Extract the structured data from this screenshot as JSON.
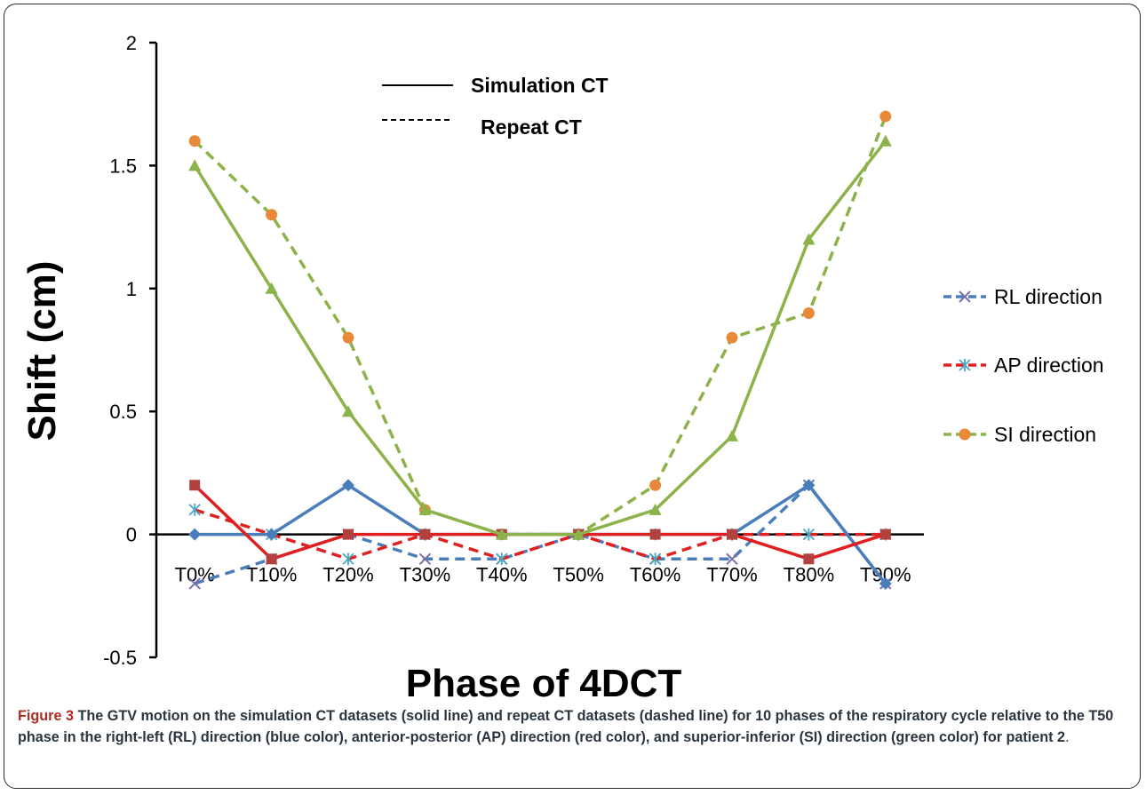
{
  "chart_data": {
    "type": "line",
    "categories": [
      "T0%",
      "T10%",
      "T20%",
      "T30%",
      "T40%",
      "T50%",
      "T60%",
      "T70%",
      "T80%",
      "T90%"
    ],
    "xlabel": "Phase of 4DCT",
    "ylabel": "Shift (cm)",
    "ylim": [
      -0.5,
      2
    ],
    "yticks": [
      "2",
      "1.5",
      "1",
      "0.5",
      "0",
      "-0.5"
    ],
    "ytick_values": [
      2,
      1.5,
      1,
      0.5,
      0,
      -0.5
    ],
    "grid": false,
    "legend_position": "right",
    "line_style_key": {
      "solid_label": "Simulation CT",
      "dashed_label": "Repeat CT"
    },
    "series": [
      {
        "name": "RL direction",
        "dataset": "simulation",
        "style": "solid",
        "color": "#4a7ebb",
        "marker": "diamond",
        "values": [
          0,
          0,
          0.2,
          0,
          0,
          0,
          0,
          0,
          0.2,
          -0.2
        ]
      },
      {
        "name": "AP direction",
        "dataset": "simulation",
        "style": "solid",
        "color": "#e02020",
        "marker": "square",
        "marker_color": "#b0413e",
        "values": [
          0.2,
          -0.1,
          0,
          0,
          0,
          0,
          0,
          0,
          -0.1,
          0
        ]
      },
      {
        "name": "SI direction",
        "dataset": "simulation",
        "style": "solid",
        "color": "#8cb24a",
        "marker": "triangle",
        "values": [
          1.5,
          1.0,
          0.5,
          0.1,
          0,
          0,
          0.1,
          0.4,
          1.2,
          1.6
        ]
      },
      {
        "name": "RL direction",
        "dataset": "repeat",
        "style": "dashed",
        "color": "#4a7ebb",
        "marker": "x",
        "marker_color": "#7b6fa8",
        "values": [
          -0.2,
          -0.1,
          0,
          -0.1,
          -0.1,
          0,
          -0.1,
          -0.1,
          0.2,
          -0.2
        ]
      },
      {
        "name": "AP direction",
        "dataset": "repeat",
        "style": "dashed",
        "color": "#e02020",
        "marker": "asterisk",
        "marker_color": "#4aa8c4",
        "values": [
          0.1,
          0,
          -0.1,
          0,
          -0.1,
          0,
          -0.1,
          0,
          0,
          0
        ]
      },
      {
        "name": "SI direction",
        "dataset": "repeat",
        "style": "dashed",
        "color": "#8cb24a",
        "marker": "circle",
        "marker_color": "#e8893a",
        "values": [
          1.6,
          1.3,
          0.8,
          0.1,
          0,
          0,
          0.2,
          0.8,
          0.9,
          1.7
        ]
      }
    ],
    "legend": [
      {
        "label": "RL direction",
        "color": "#4a7ebb",
        "marker": "x",
        "marker_color": "#7b6fa8"
      },
      {
        "label": "AP direction",
        "color": "#e02020",
        "marker": "asterisk",
        "marker_color": "#4aa8c4"
      },
      {
        "label": "SI direction",
        "color": "#8cb24a",
        "marker": "circle",
        "marker_color": "#e8893a"
      }
    ]
  },
  "caption": {
    "lead": "Figure 3",
    "text": " The GTV motion on the simulation CT datasets (solid line) and repeat CT datasets (dashed line) for 10 phases of the respiratory cycle relative to the T50 phase in the right-left (RL) direction (blue color), anterior-posterior (AP) direction (red color), and superior-inferior (SI) direction (green color) for patient 2",
    "end": "."
  }
}
